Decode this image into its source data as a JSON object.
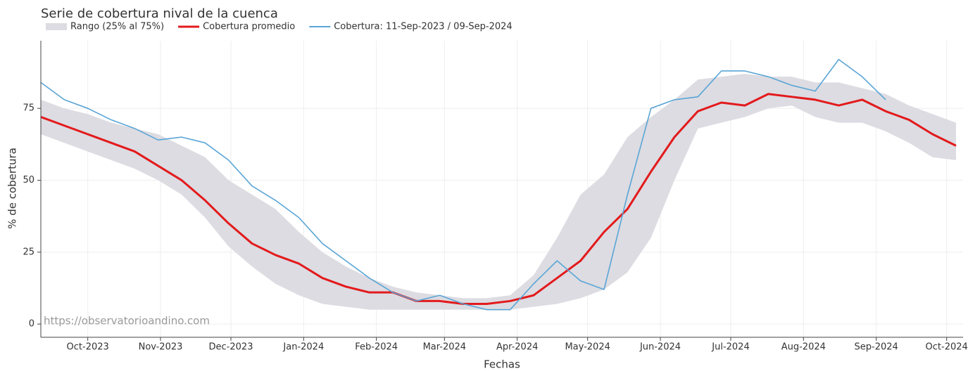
{
  "chart_data": {
    "type": "line",
    "title": "Serie de cobertura nival de la cuenca",
    "x_label": "Fechas",
    "y_label": "% de cobertura",
    "watermark": "https://observatorioandino.com",
    "x": [
      0,
      10,
      20,
      30,
      40,
      50,
      60,
      70,
      80,
      90,
      100,
      110,
      120,
      130,
      140,
      150,
      160,
      170,
      180,
      190,
      200,
      210,
      220,
      230,
      240,
      250,
      260,
      270,
      280,
      290,
      300,
      310,
      320,
      330,
      340,
      350,
      360,
      370,
      380,
      390
    ],
    "xlim": [
      0,
      393
    ],
    "xticks": [
      {
        "value": 20,
        "label": "Oct-2023"
      },
      {
        "value": 51,
        "label": "Nov-2023"
      },
      {
        "value": 81,
        "label": "Dec-2023"
      },
      {
        "value": 112,
        "label": "Jan-2024"
      },
      {
        "value": 143,
        "label": "Feb-2024"
      },
      {
        "value": 172,
        "label": "Mar-2024"
      },
      {
        "value": 203,
        "label": "Apr-2024"
      },
      {
        "value": 233,
        "label": "May-2024"
      },
      {
        "value": 264,
        "label": "Jun-2024"
      },
      {
        "value": 294,
        "label": "Jul-2024"
      },
      {
        "value": 325,
        "label": "Aug-2024"
      },
      {
        "value": 356,
        "label": "Sep-2024"
      },
      {
        "value": 386,
        "label": "Oct-2024"
      }
    ],
    "ylim": [
      -4.6,
      98.5
    ],
    "yticks": [
      0,
      25,
      50,
      75
    ],
    "grid": true,
    "legend": "top-left",
    "series": [
      {
        "name": "Rango (25% al 75%)",
        "color": "#dcdce2",
        "lower": [
          66,
          63,
          60,
          57,
          54,
          50,
          45,
          37,
          27,
          20,
          14,
          10,
          7,
          6,
          5,
          5,
          5,
          5,
          5,
          5,
          5,
          6,
          7,
          9,
          12,
          18,
          30,
          50,
          68,
          70,
          72,
          75,
          76,
          72,
          70,
          70,
          67,
          63,
          58,
          57
        ],
        "upper": [
          78,
          75,
          73,
          70,
          68,
          66,
          62,
          58,
          50,
          45,
          40,
          32,
          25,
          20,
          16,
          13,
          11,
          10,
          9,
          9,
          10,
          17,
          30,
          45,
          52,
          65,
          72,
          78,
          85,
          86,
          87,
          86,
          86,
          84,
          84,
          82,
          80,
          76,
          73,
          70
        ]
      },
      {
        "name": "Cobertura promedio",
        "color": "#e31a1c",
        "values": [
          72,
          69,
          66,
          63,
          60,
          55,
          50,
          43,
          35,
          28,
          24,
          21,
          16,
          13,
          11,
          11,
          8,
          8,
          7,
          7,
          8,
          10,
          16,
          22,
          32,
          40,
          53,
          65,
          74,
          77,
          76,
          80,
          79,
          78,
          76,
          78,
          74,
          71,
          66,
          62
        ]
      },
      {
        "name": "Cobertura: 11-Sep-2023 / 09-Sep-2024",
        "color": "#5aa5d6",
        "values": [
          84,
          78,
          75,
          71,
          68,
          64,
          65,
          63,
          57,
          48,
          43,
          37,
          28,
          22,
          16,
          11,
          8,
          10,
          7,
          5,
          5,
          14,
          22,
          15,
          12,
          45,
          75,
          78,
          79,
          88,
          88,
          86,
          83,
          81,
          92,
          86,
          78,
          null,
          null,
          null
        ]
      }
    ]
  }
}
